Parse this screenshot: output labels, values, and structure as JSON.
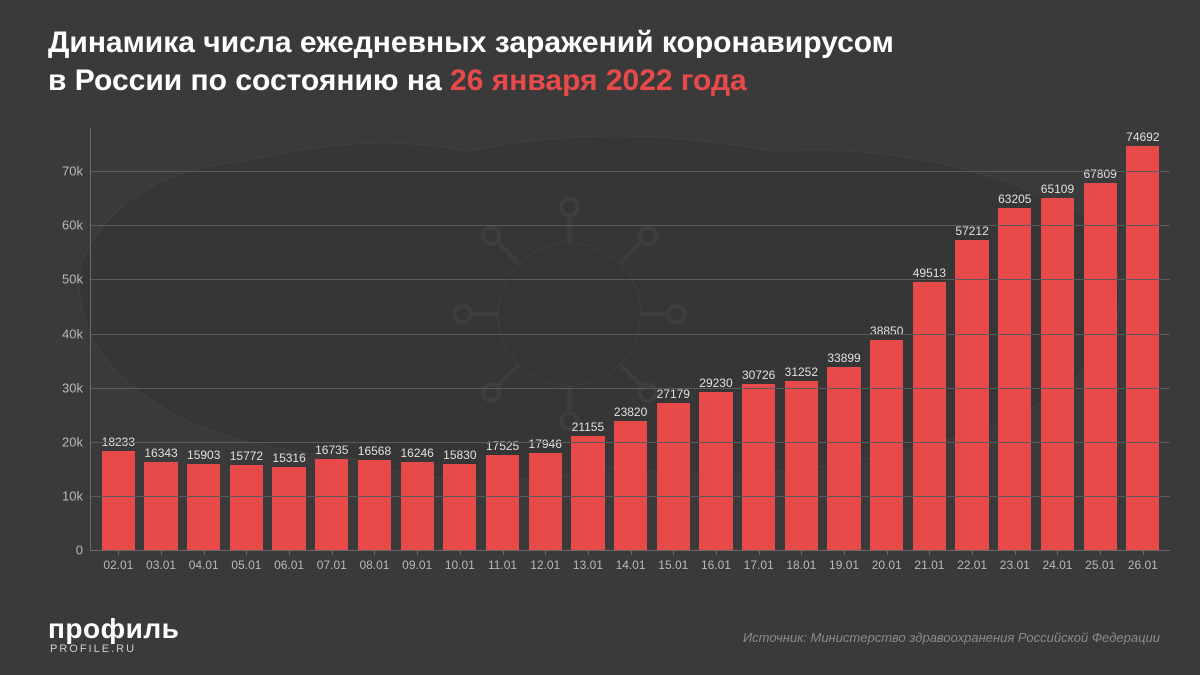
{
  "title": {
    "line1": "Динамика числа ежедневных заражений коронавирусом",
    "line2_prefix": "в России по состоянию на ",
    "line2_accent": "26 января 2022 года",
    "fontsize": 30,
    "color": "#ffffff",
    "accent_color": "#e84a4a"
  },
  "chart": {
    "type": "bar",
    "background_color": "#3a3a3a",
    "bar_color": "#e84a4a",
    "grid_color": "#5a5a5a",
    "axis_color": "#6a6a6a",
    "text_color": "#b8b8b8",
    "label_color": "#e0e0e0",
    "bar_width": 0.78,
    "label_fontsize": 12,
    "axis_fontsize": 13,
    "ylim": [
      0,
      78000
    ],
    "yticks": [
      {
        "v": 0,
        "label": "0"
      },
      {
        "v": 10000,
        "label": "10k"
      },
      {
        "v": 20000,
        "label": "20k"
      },
      {
        "v": 30000,
        "label": "30k"
      },
      {
        "v": 40000,
        "label": "40k"
      },
      {
        "v": 50000,
        "label": "50k"
      },
      {
        "v": 60000,
        "label": "60k"
      },
      {
        "v": 70000,
        "label": "70k"
      }
    ],
    "data": [
      {
        "x": "02.01",
        "v": 18233,
        "label": "18233"
      },
      {
        "x": "03.01",
        "v": 16343,
        "label": "16343"
      },
      {
        "x": "04.01",
        "v": 15903,
        "label": "15903"
      },
      {
        "x": "05.01",
        "v": 15772,
        "label": "15772"
      },
      {
        "x": "06.01",
        "v": 15316,
        "label": "15316"
      },
      {
        "x": "07.01",
        "v": 16735,
        "label": "16735"
      },
      {
        "x": "08.01",
        "v": 16568,
        "label": "16568"
      },
      {
        "x": "09.01",
        "v": 16246,
        "label": "16246"
      },
      {
        "x": "10.01",
        "v": 15830,
        "label": "15830"
      },
      {
        "x": "11.01",
        "v": 17525,
        "label": "17525"
      },
      {
        "x": "12.01",
        "v": 17946,
        "label": "17946"
      },
      {
        "x": "13.01",
        "v": 21155,
        "label": "21155"
      },
      {
        "x": "14.01",
        "v": 23820,
        "label": "23820"
      },
      {
        "x": "15.01",
        "v": 27179,
        "label": "27179"
      },
      {
        "x": "16.01",
        "v": 29230,
        "label": "29230"
      },
      {
        "x": "17.01",
        "v": 30726,
        "label": "30726"
      },
      {
        "x": "18.01",
        "v": 31252,
        "label": "31252"
      },
      {
        "x": "19.01",
        "v": 33899,
        "label": "33899"
      },
      {
        "x": "20.01",
        "v": 38850,
        "label": "38850"
      },
      {
        "x": "21.01",
        "v": 49513,
        "label": "49513"
      },
      {
        "x": "22.01",
        "v": 57212,
        "label": "57212"
      },
      {
        "x": "23.01",
        "v": 63205,
        "label": "63205"
      },
      {
        "x": "24.01",
        "v": 65109,
        "label": "65109"
      },
      {
        "x": "25.01",
        "v": 67809,
        "label": "67809"
      },
      {
        "x": "26.01",
        "v": 74692,
        "label": "74692"
      }
    ]
  },
  "logo": {
    "main": "профиль",
    "sub": "PROFILE.RU",
    "color": "#ffffff"
  },
  "source": {
    "prefix": "Источник: ",
    "text": "Министерство здравоохранения Российской Федерации",
    "color": "#8a8a8a"
  }
}
